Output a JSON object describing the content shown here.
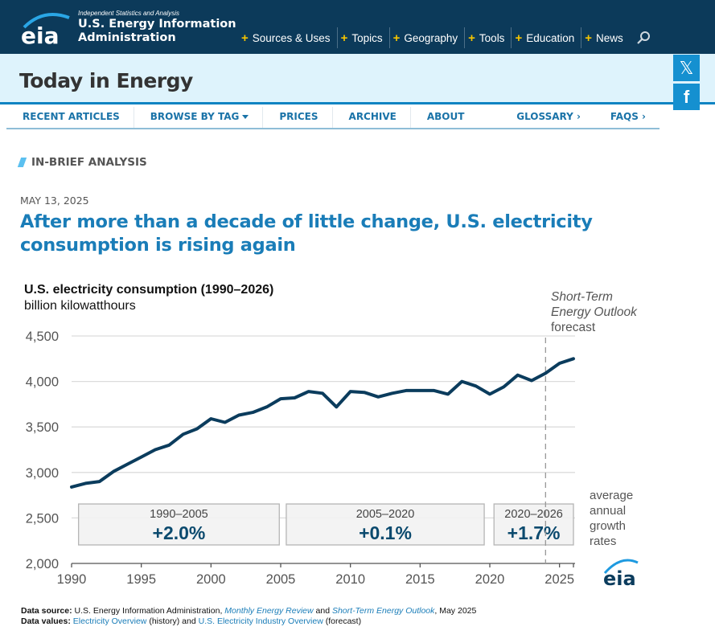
{
  "header": {
    "logo_text": "eia",
    "tagline": "Independent Statistics and Analysis",
    "org_name_line1": "U.S. Energy Information",
    "org_name_line2": "Administration",
    "nav": [
      {
        "label": "Sources & Uses"
      },
      {
        "label": "Topics"
      },
      {
        "label": "Geography"
      },
      {
        "label": "Tools"
      },
      {
        "label": "Education"
      },
      {
        "label": "News"
      }
    ]
  },
  "banner": {
    "title": "Today in Energy",
    "social": [
      {
        "name": "X",
        "glyph": "𝕏"
      },
      {
        "name": "Facebook",
        "glyph": "f"
      }
    ]
  },
  "subnav": {
    "left": [
      {
        "label": "RECENT ARTICLES"
      },
      {
        "label": "BROWSE BY TAG"
      },
      {
        "label": "PRICES"
      },
      {
        "label": "ARCHIVE"
      },
      {
        "label": "ABOUT"
      }
    ],
    "right": [
      {
        "label": "GLOSSARY ›"
      },
      {
        "label": "FAQS ›"
      }
    ]
  },
  "article": {
    "section": "IN-BRIEF ANALYSIS",
    "date": "MAY 13, 2025",
    "headline": "After more than a decade of little change, U.S. electricity consumption is rising again"
  },
  "chart_data": {
    "type": "line",
    "title": "U.S. electricity consumption (1990–2026)",
    "subtitle": "billion kilowatthours",
    "xlabel": "",
    "ylabel": "billion kilowatthours",
    "x": [
      1990,
      1991,
      1992,
      1993,
      1994,
      1995,
      1996,
      1997,
      1998,
      1999,
      2000,
      2001,
      2002,
      2003,
      2004,
      2005,
      2006,
      2007,
      2008,
      2009,
      2010,
      2011,
      2012,
      2013,
      2014,
      2015,
      2016,
      2017,
      2018,
      2019,
      2020,
      2021,
      2022,
      2023,
      2024,
      2025,
      2026
    ],
    "series": [
      {
        "name": "U.S. electricity consumption",
        "color": "#0b3c5d",
        "values": [
          2840,
          2880,
          2900,
          3010,
          3090,
          3170,
          3250,
          3300,
          3420,
          3480,
          3590,
          3550,
          3630,
          3660,
          3720,
          3810,
          3820,
          3890,
          3870,
          3720,
          3890,
          3880,
          3830,
          3870,
          3900,
          3900,
          3900,
          3860,
          4000,
          3950,
          3860,
          3940,
          4070,
          4010,
          4090,
          4200,
          4250
        ]
      }
    ],
    "ylim": [
      2000,
      4500
    ],
    "xlim": [
      1990,
      2026
    ],
    "yticks": [
      2000,
      2500,
      3000,
      3500,
      4000,
      4500
    ],
    "ytick_labels": [
      "2,000",
      "2,500",
      "3,000",
      "3,500",
      "4,000",
      "4,500"
    ],
    "xticks": [
      1990,
      1995,
      2000,
      2005,
      2010,
      2015,
      2020,
      2025
    ],
    "xtick_labels": [
      "1990",
      "1995",
      "2000",
      "2005",
      "2010",
      "2015",
      "2020",
      "2025"
    ],
    "grid": true,
    "forecast_start": 2024,
    "forecast_label": [
      "Short-Term",
      "Energy Outlook",
      "forecast"
    ],
    "growth_boxes": [
      {
        "period": "1990–2005",
        "rate": "+2.0%",
        "from": 1990.5,
        "to": 2004.9
      },
      {
        "period": "2005–2020",
        "rate": "+0.1%",
        "from": 2005.4,
        "to": 2019.6
      },
      {
        "period": "2020–2026",
        "rate": "+1.7%",
        "from": 2020.3,
        "to": 2026
      }
    ],
    "growth_label": [
      "average",
      "annual",
      "growth",
      "rates"
    ],
    "watermark": "eia"
  },
  "footer": {
    "source_label": "Data source:",
    "source_text1": "U.S. Energy Information Administration,",
    "source_link1": "Monthly Energy Review",
    "source_and": "and",
    "source_link2": "Short-Term Energy Outlook",
    "source_text2": ", May 2025",
    "values_label": "Data values:",
    "values_link1": "Electricity Overview",
    "values_text1": "(history) and",
    "values_link2": "U.S. Electricity Industry Overview",
    "values_text2": "(forecast)"
  }
}
